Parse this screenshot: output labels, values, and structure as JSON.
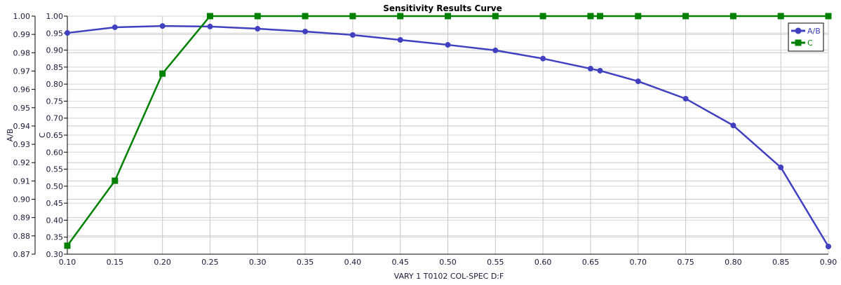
{
  "chart_data": {
    "type": "line",
    "title": "Sensitivity Results Curve",
    "xlabel": "VARY  1 T0102 COL-SPEC D:F",
    "xlim": [
      0.1,
      0.9
    ],
    "xticks": [
      "0.10",
      "0.15",
      "0.20",
      "0.25",
      "0.30",
      "0.35",
      "0.40",
      "0.45",
      "0.50",
      "0.55",
      "0.60",
      "0.65",
      "0.70",
      "0.75",
      "0.80",
      "0.85",
      "0.90"
    ],
    "axes": [
      {
        "label": "A/B",
        "ylim": [
          0.87,
          1.0
        ],
        "ticks": [
          "0.87",
          "0.88",
          "0.89",
          "0.90",
          "0.91",
          "0.92",
          "0.93",
          "0.94",
          "0.95",
          "0.96",
          "0.97",
          "0.98",
          "0.99",
          "1.00"
        ]
      },
      {
        "label": "C",
        "ylim": [
          0.3,
          1.0
        ],
        "ticks": [
          "0.30",
          "0.35",
          "0.40",
          "0.45",
          "0.50",
          "0.55",
          "0.60",
          "0.65",
          "0.70",
          "0.75",
          "0.80",
          "0.85",
          "0.90",
          "0.95",
          "1.00"
        ]
      }
    ],
    "grid": true,
    "legend_position": "top-right",
    "x": [
      0.1,
      0.15,
      0.2,
      0.25,
      0.3,
      0.35,
      0.4,
      0.45,
      0.5,
      0.55,
      0.6,
      0.65,
      0.66,
      0.7,
      0.75,
      0.8,
      0.85,
      0.9
    ],
    "series": [
      {
        "name": "A/B",
        "axis": 0,
        "color": "#4040c0",
        "marker": "circle",
        "values": [
          0.9908,
          0.9939,
          0.9946,
          0.9943,
          0.9931,
          0.9916,
          0.9897,
          0.987,
          0.9843,
          0.9813,
          0.9768,
          0.9713,
          0.9702,
          0.9644,
          0.9549,
          0.9403,
          0.9174,
          0.8742
        ]
      },
      {
        "name": "C",
        "axis": 1,
        "color": "#008000",
        "marker": "square",
        "values": [
          0.325,
          0.516,
          0.831,
          1.0,
          1.0,
          1.0,
          1.0,
          1.0,
          1.0,
          1.0,
          1.0,
          1.0,
          1.0,
          1.0,
          1.0,
          1.0,
          1.0,
          1.0
        ]
      }
    ]
  }
}
